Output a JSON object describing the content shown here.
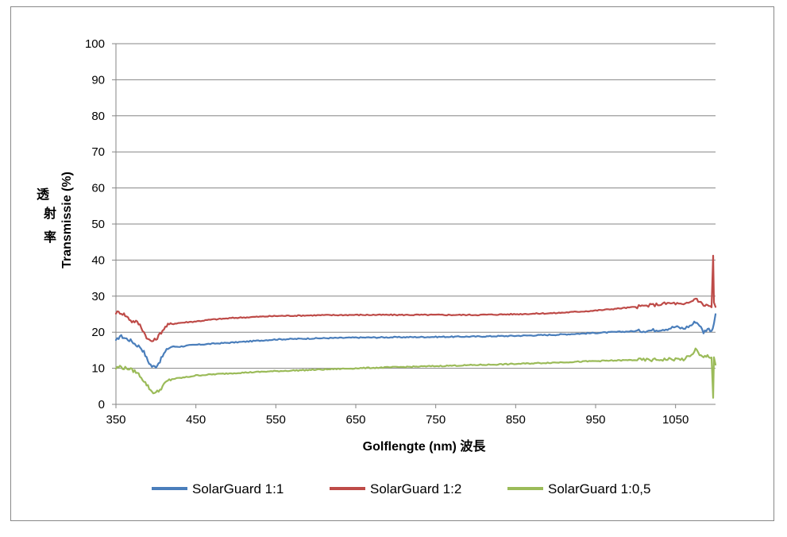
{
  "chart_data": {
    "type": "line",
    "xlabel": "Golflengte (nm) 波長",
    "ylabel": "Transmissie (%)",
    "ylabel_cjk": [
      "透",
      "射",
      "率"
    ],
    "xlim": [
      350,
      1100
    ],
    "ylim": [
      0,
      100
    ],
    "x_ticks": [
      350,
      450,
      550,
      650,
      750,
      850,
      950,
      1050
    ],
    "y_ticks": [
      0,
      10,
      20,
      30,
      40,
      50,
      60,
      70,
      80,
      90,
      100
    ],
    "grid": "horizontal",
    "legend_position": "bottom",
    "series": [
      {
        "name": "SolarGuard 1:1",
        "color": "#4a7ebb",
        "x": [
          350,
          355,
          360,
          365,
          370,
          375,
          380,
          385,
          390,
          395,
          400,
          405,
          410,
          415,
          420,
          430,
          440,
          450,
          470,
          500,
          550,
          600,
          650,
          700,
          750,
          800,
          850,
          900,
          950,
          1000,
          1020,
          1040,
          1050,
          1060,
          1070,
          1075,
          1080,
          1085,
          1090,
          1095,
          1098,
          1100
        ],
        "y": [
          17.5,
          19,
          18.5,
          18,
          17.5,
          16.5,
          16,
          14.5,
          12,
          10.5,
          10.5,
          12,
          14,
          15.5,
          16,
          16,
          16.3,
          16.5,
          16.8,
          17.2,
          18,
          18.3,
          18.5,
          18.6,
          18.7,
          18.8,
          19.0,
          19.3,
          19.8,
          20.3,
          20.5,
          21,
          21.5,
          21,
          22,
          23,
          22,
          20,
          21,
          20.5,
          22,
          25
        ]
      },
      {
        "name": "SolarGuard 1:2",
        "color": "#be4b48",
        "x": [
          350,
          355,
          360,
          365,
          370,
          375,
          380,
          385,
          390,
          395,
          400,
          405,
          410,
          415,
          420,
          430,
          440,
          450,
          470,
          500,
          550,
          600,
          650,
          700,
          750,
          800,
          850,
          900,
          950,
          1000,
          1020,
          1040,
          1050,
          1060,
          1070,
          1075,
          1080,
          1085,
          1090,
          1095,
          1097,
          1098,
          1100
        ],
        "y": [
          25.5,
          25.5,
          25,
          24,
          23,
          23,
          22,
          20,
          18,
          17.5,
          18,
          19.5,
          21,
          22,
          22.3,
          22.6,
          22.8,
          23,
          23.5,
          24,
          24.5,
          24.7,
          24.8,
          24.8,
          24.8,
          24.8,
          25,
          25.3,
          26,
          27,
          27.5,
          28,
          28,
          27.5,
          28.5,
          29.5,
          28.5,
          27.5,
          27.5,
          27,
          41,
          28,
          27
        ]
      },
      {
        "name": "SolarGuard 1:0,5",
        "color": "#9bbb59",
        "x": [
          350,
          355,
          360,
          365,
          370,
          375,
          380,
          385,
          390,
          395,
          400,
          405,
          410,
          415,
          420,
          430,
          440,
          450,
          470,
          500,
          550,
          600,
          650,
          700,
          750,
          800,
          850,
          900,
          950,
          1000,
          1020,
          1040,
          1050,
          1060,
          1070,
          1075,
          1080,
          1085,
          1090,
          1095,
          1097,
          1098,
          1100
        ],
        "y": [
          10,
          10.5,
          10,
          10,
          9.5,
          9,
          8,
          6.5,
          5,
          3.5,
          3.2,
          4,
          5.5,
          6.5,
          7,
          7.3,
          7.6,
          8,
          8.3,
          8.7,
          9.2,
          9.6,
          10,
          10.3,
          10.6,
          10.9,
          11.2,
          11.6,
          12,
          12.3,
          12.3,
          12.5,
          12.5,
          12.5,
          13.5,
          15.5,
          13.5,
          13,
          13.5,
          13,
          2,
          13,
          11
        ]
      }
    ]
  }
}
